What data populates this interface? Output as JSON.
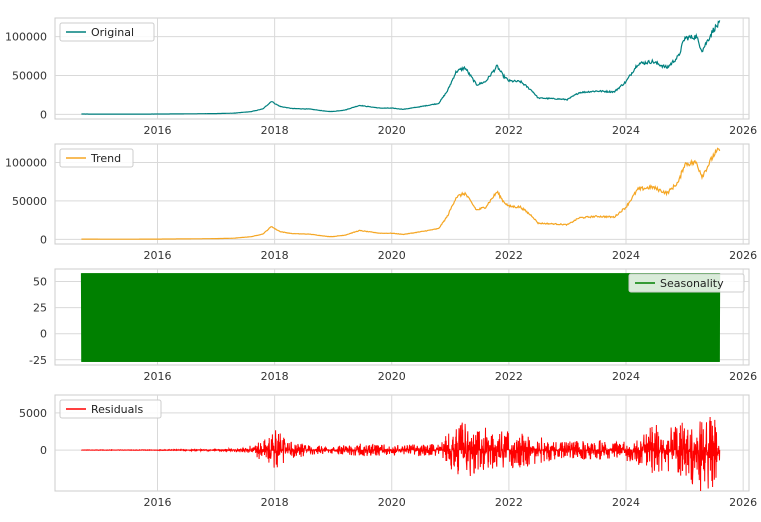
{
  "chart_data": [
    {
      "type": "line",
      "series": [
        {
          "name": "Original",
          "color": "#00807f",
          "x": [
            2014.7,
            2015.0,
            2015.5,
            2016.0,
            2016.5,
            2017.0,
            2017.3,
            2017.6,
            2017.8,
            2017.95,
            2018.0,
            2018.1,
            2018.3,
            2018.6,
            2018.9,
            2019.0,
            2019.2,
            2019.45,
            2019.6,
            2019.8,
            2020.0,
            2020.2,
            2020.5,
            2020.8,
            2020.95,
            2021.1,
            2021.25,
            2021.45,
            2021.6,
            2021.8,
            2021.9,
            2022.0,
            2022.2,
            2022.4,
            2022.5,
            2022.8,
            2023.0,
            2023.2,
            2023.5,
            2023.8,
            2024.0,
            2024.2,
            2024.45,
            2024.7,
            2024.9,
            2025.0,
            2025.2,
            2025.3,
            2025.5,
            2025.6
          ],
          "y": [
            400,
            300,
            250,
            400,
            650,
            1000,
            1500,
            3500,
            7000,
            17000,
            14000,
            10000,
            7500,
            6800,
            3800,
            3700,
            5500,
            11500,
            10000,
            8000,
            8000,
            6500,
            10000,
            14000,
            30000,
            55000,
            60000,
            38000,
            42000,
            62000,
            50000,
            43000,
            42000,
            30000,
            21000,
            20000,
            19000,
            28000,
            30000,
            29000,
            42000,
            65000,
            68000,
            60000,
            75000,
            98000,
            100000,
            82000,
            110000,
            117000
          ]
        },
        {
          "name": "Trend",
          "color": "#f5a623",
          "x": [
            2014.7,
            2015.0,
            2015.5,
            2016.0,
            2016.5,
            2017.0,
            2017.3,
            2017.6,
            2017.8,
            2017.95,
            2018.0,
            2018.1,
            2018.3,
            2018.6,
            2018.9,
            2019.0,
            2019.2,
            2019.45,
            2019.6,
            2019.8,
            2020.0,
            2020.2,
            2020.5,
            2020.8,
            2020.95,
            2021.1,
            2021.25,
            2021.45,
            2021.6,
            2021.8,
            2021.9,
            2022.0,
            2022.2,
            2022.4,
            2022.5,
            2022.8,
            2023.0,
            2023.2,
            2023.5,
            2023.8,
            2024.0,
            2024.2,
            2024.45,
            2024.7,
            2024.9,
            2025.0,
            2025.2,
            2025.3,
            2025.5,
            2025.6
          ],
          "y": [
            400,
            300,
            250,
            400,
            650,
            1000,
            1500,
            3500,
            7000,
            17000,
            14000,
            10000,
            7500,
            6800,
            3800,
            3700,
            5500,
            11500,
            10000,
            8000,
            8000,
            6500,
            10000,
            14000,
            30000,
            55000,
            60000,
            38000,
            42000,
            62000,
            50000,
            43000,
            42000,
            30000,
            21000,
            20000,
            19000,
            28000,
            30000,
            29000,
            42000,
            65000,
            68000,
            60000,
            75000,
            98000,
            100000,
            82000,
            110000,
            117000
          ]
        }
      ],
      "xticks": [
        "2016",
        "2018",
        "2020",
        "2022",
        "2024",
        "2026"
      ],
      "yticks": [
        "0",
        "50000",
        "100000"
      ],
      "xlim": [
        2014.25,
        2026.1
      ],
      "ylim": [
        -6000,
        124000
      ],
      "grid": true,
      "legend_position": "top-left"
    },
    {
      "type": "line",
      "series": [
        {
          "name": "Trend",
          "color": "#f5a623"
        }
      ],
      "xticks": [
        "2016",
        "2018",
        "2020",
        "2022",
        "2024",
        "2026"
      ],
      "yticks": [
        "0",
        "50000",
        "100000"
      ],
      "xlim": [
        2014.25,
        2026.1
      ],
      "ylim": [
        -6000,
        124000
      ],
      "grid": true,
      "legend_position": "top-left"
    },
    {
      "type": "area",
      "series": [
        {
          "name": "Seasonality",
          "color": "#008000",
          "x_start": 2014.7,
          "x_end": 2025.6,
          "y_min": -27,
          "y_max": 58
        }
      ],
      "xticks": [
        "2016",
        "2018",
        "2020",
        "2022",
        "2024",
        "2026"
      ],
      "yticks": [
        "-25",
        "0",
        "25",
        "50"
      ],
      "xlim": [
        2014.25,
        2026.1
      ],
      "ylim": [
        -30,
        62
      ],
      "grid": true,
      "legend_position": "top-right"
    },
    {
      "type": "line",
      "series": [
        {
          "name": "Residuals",
          "color": "#ff0000",
          "envelope_x": [
            2014.7,
            2016.0,
            2017.0,
            2017.5,
            2017.9,
            2018.0,
            2018.2,
            2018.6,
            2019.0,
            2019.5,
            2020.0,
            2020.8,
            2021.0,
            2021.2,
            2021.5,
            2021.8,
            2022.0,
            2022.3,
            2022.7,
            2023.0,
            2023.5,
            2023.9,
            2024.2,
            2024.5,
            2024.8,
            2025.0,
            2025.2,
            2025.4,
            2025.6
          ],
          "envelope_y": [
            30,
            40,
            120,
            350,
            1800,
            3100,
            1300,
            700,
            500,
            900,
            700,
            900,
            2600,
            4000,
            3200,
            2800,
            2600,
            2200,
            1500,
            1200,
            1400,
            1200,
            2000,
            3500,
            3400,
            4200,
            5200,
            6500,
            3000
          ]
        }
      ],
      "xticks": [
        "2016",
        "2018",
        "2020",
        "2022",
        "2024",
        "2026"
      ],
      "yticks": [
        "0",
        "5000"
      ],
      "xlim": [
        2014.25,
        2026.1
      ],
      "ylim": [
        -5500,
        7400
      ],
      "grid": true,
      "legend_position": "top-left"
    }
  ]
}
